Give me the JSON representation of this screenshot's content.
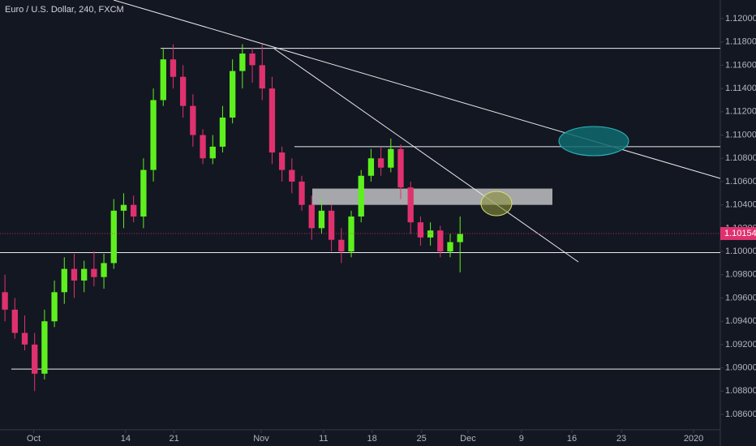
{
  "chart_data": {
    "type": "candlestick",
    "title": "Euro / U.S. Dollar, 240, FXCM",
    "up_color": "#5ef01e",
    "down_color": "#e0316f",
    "x": [
      0,
      1,
      2,
      3,
      4,
      5,
      6,
      7,
      8,
      9,
      10,
      11,
      12,
      13,
      14,
      15,
      16,
      17,
      18,
      19,
      20,
      21,
      22,
      23,
      24,
      25,
      26,
      27,
      28,
      29,
      30,
      31,
      32,
      33,
      34,
      35,
      36,
      37,
      38,
      39,
      40,
      41,
      42,
      43,
      44,
      45,
      46
    ],
    "open": [
      1.0965,
      1.095,
      1.093,
      1.092,
      1.0895,
      1.094,
      1.0965,
      1.0985,
      1.0975,
      1.0985,
      1.0978,
      1.099,
      1.1035,
      1.104,
      1.103,
      1.107,
      1.113,
      1.1165,
      1.115,
      1.1125,
      1.11,
      1.108,
      1.109,
      1.1115,
      1.1155,
      1.117,
      1.116,
      1.114,
      1.1085,
      1.107,
      1.106,
      1.104,
      1.102,
      1.1035,
      1.101,
      1.1,
      1.103,
      1.1065,
      1.108,
      1.1072,
      1.1088,
      1.1055,
      1.1025,
      1.1012,
      1.1018,
      1.1,
      1.1008
    ],
    "high": [
      1.098,
      1.096,
      1.0945,
      1.093,
      1.095,
      1.0975,
      1.0995,
      1.0998,
      1.0992,
      1.1,
      1.0998,
      1.1045,
      1.105,
      1.1048,
      1.108,
      1.114,
      1.1175,
      1.1178,
      1.116,
      1.1135,
      1.1105,
      1.11,
      1.1125,
      1.1165,
      1.1178,
      1.1175,
      1.1178,
      1.115,
      1.109,
      1.108,
      1.1065,
      1.1048,
      1.1045,
      1.104,
      1.102,
      1.1035,
      1.107,
      1.1088,
      1.109,
      1.1097,
      1.1092,
      1.106,
      1.103,
      1.1025,
      1.1022,
      1.1015,
      1.103
    ],
    "low": [
      1.094,
      1.0925,
      1.0915,
      1.088,
      1.089,
      1.0935,
      1.0955,
      1.096,
      1.0965,
      1.097,
      1.0968,
      1.0985,
      1.102,
      1.1025,
      1.102,
      1.106,
      1.1125,
      1.114,
      1.1115,
      1.109,
      1.1075,
      1.1075,
      1.1085,
      1.111,
      1.114,
      1.1145,
      1.113,
      1.1075,
      1.106,
      1.105,
      1.1035,
      1.101,
      1.1015,
      1.1,
      1.099,
      1.0995,
      1.1025,
      1.106,
      1.1065,
      1.1068,
      1.1045,
      1.1015,
      1.1005,
      1.1005,
      1.0995,
      1.0995,
      1.0982
    ],
    "close": [
      1.095,
      1.093,
      1.092,
      1.0895,
      1.094,
      1.0965,
      1.0985,
      1.0975,
      1.0985,
      1.0978,
      1.099,
      1.1035,
      1.104,
      1.103,
      1.107,
      1.113,
      1.1165,
      1.115,
      1.1125,
      1.11,
      1.108,
      1.109,
      1.1115,
      1.1155,
      1.117,
      1.116,
      1.114,
      1.1085,
      1.107,
      1.106,
      1.104,
      1.102,
      1.1035,
      1.101,
      1.1,
      1.103,
      1.1065,
      1.108,
      1.1072,
      1.1088,
      1.1055,
      1.1025,
      1.1012,
      1.1018,
      1.1,
      1.1008,
      1.1015
    ],
    "xlim": [
      -0.5,
      72.3
    ],
    "xticks": [
      {
        "value": 2.9,
        "label": "Oct"
      },
      {
        "value": 12.2,
        "label": "14"
      },
      {
        "value": 17.1,
        "label": "21"
      },
      {
        "value": 25.9,
        "label": "Nov"
      },
      {
        "value": 32.2,
        "label": "11"
      },
      {
        "value": 37.1,
        "label": "18"
      },
      {
        "value": 42.1,
        "label": "25"
      },
      {
        "value": 46.8,
        "label": "Dec"
      },
      {
        "value": 52.2,
        "label": "9"
      },
      {
        "value": 57.3,
        "label": "16"
      },
      {
        "value": 62.3,
        "label": "23"
      },
      {
        "value": 69.6,
        "label": "2020"
      }
    ],
    "ylim": [
      1.08468,
      1.1216
    ],
    "yticks": [
      {
        "value": 1.086,
        "label": "1.08600"
      },
      {
        "value": 1.088,
        "label": "1.08800"
      },
      {
        "value": 1.09,
        "label": "1.09000"
      },
      {
        "value": 1.092,
        "label": "1.09200"
      },
      {
        "value": 1.094,
        "label": "1.09400"
      },
      {
        "value": 1.096,
        "label": "1.09600"
      },
      {
        "value": 1.098,
        "label": "1.09800"
      },
      {
        "value": 1.1,
        "label": "1.10000"
      },
      {
        "value": 1.102,
        "label": "1.10200"
      },
      {
        "value": 1.104,
        "label": "1.10400"
      },
      {
        "value": 1.106,
        "label": "1.10600"
      },
      {
        "value": 1.108,
        "label": "1.10800"
      },
      {
        "value": 1.11,
        "label": "1.11000"
      },
      {
        "value": 1.112,
        "label": "1.11200"
      },
      {
        "value": 1.114,
        "label": "1.11400"
      },
      {
        "value": 1.116,
        "label": "1.11600"
      },
      {
        "value": 1.118,
        "label": "1.11800"
      },
      {
        "value": 1.12,
        "label": "1.12000"
      }
    ],
    "levels": [
      1.11745,
      1.109,
      1.0999,
      1.0899
    ],
    "last_price": 1.10154,
    "last_price_label": "1.10154",
    "zone": [
      1.104,
      1.1054
    ]
  }
}
